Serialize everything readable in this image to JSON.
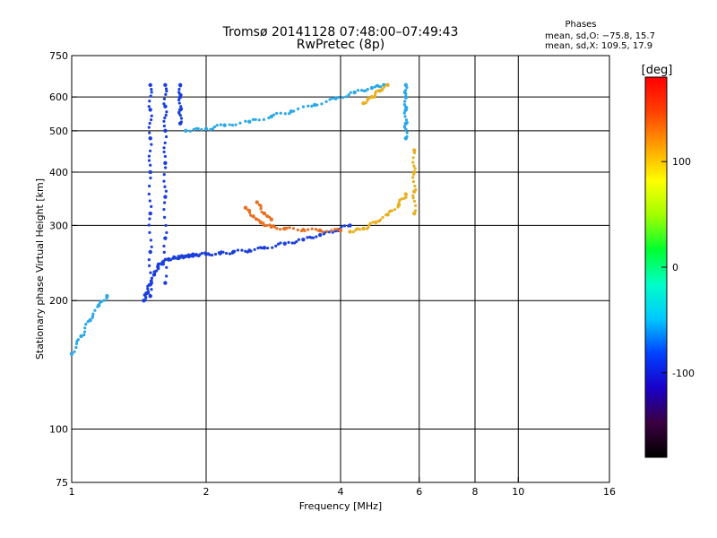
{
  "chart_data": {
    "type": "scatter",
    "title": "Tromsø 20141128 07:48:00–07:49:43",
    "subtitle": "RwPretec (8p)",
    "xlabel": "Frequency [MHz]",
    "ylabel": "Stationary phase Virtual Height [km]",
    "x_scale": "log",
    "y_scale": "log",
    "xlim": [
      1,
      16
    ],
    "ylim": [
      75,
      750
    ],
    "x_ticks": [
      1,
      2,
      4,
      6,
      8,
      10,
      16
    ],
    "y_ticks": [
      75,
      100,
      200,
      300,
      400,
      500,
      600,
      750
    ],
    "grid_x": [
      2,
      4,
      6,
      8,
      10
    ],
    "grid_y": [
      100,
      200,
      300,
      400,
      500,
      600
    ],
    "phase_stats": {
      "heading": "Phases",
      "o_line": "mean, sd,O: −75.8, 15.7",
      "x_line": "mean, sd,X: 109.5, 17.9"
    },
    "colorbar": {
      "unit": "[deg]",
      "range": [
        -180,
        180
      ],
      "ticks": [
        100,
        0,
        -100
      ],
      "colors": [
        "#000000",
        "#3a0040",
        "#1a00c8",
        "#0040ff",
        "#00c8ff",
        "#00ffc8",
        "#00ff30",
        "#a0ff00",
        "#ffff00",
        "#ffa000",
        "#ff4000",
        "#ff0000"
      ]
    },
    "series": [
      {
        "color": "#1a3fdc",
        "segments": [
          {
            "x": [
              1.45,
              1.47,
              1.5,
              1.53,
              1.56,
              1.6,
              1.65,
              1.7,
              1.75,
              1.8,
              1.85,
              1.9,
              2.0,
              2.15,
              2.3,
              2.5,
              2.7,
              3.0,
              3.3,
              3.6,
              3.9,
              4.2
            ],
            "y": [
              200,
              208,
              218,
              230,
              240,
              246,
              250,
              252,
              253,
              254,
              255,
              256,
              257,
              258,
              260,
              262,
              266,
              272,
              278,
              285,
              292,
              300
            ]
          },
          {
            "x": [
              1.5,
              1.5,
              1.5,
              1.5,
              1.5,
              1.5,
              1.5
            ],
            "y": [
              205,
              260,
              320,
              400,
              480,
              560,
              640
            ]
          },
          {
            "x": [
              1.62,
              1.62,
              1.62,
              1.62,
              1.62,
              1.62,
              1.62
            ],
            "y": [
              220,
              280,
              350,
              420,
              500,
              570,
              640
            ]
          },
          {
            "x": [
              1.75,
              1.75,
              1.75,
              1.75
            ],
            "y": [
              520,
              560,
              600,
              640
            ]
          }
        ]
      },
      {
        "color": "#2aa8e8",
        "segments": [
          {
            "x": [
              1.8,
              2.0,
              2.2,
              2.5,
              2.8,
              3.1,
              3.5,
              3.9,
              4.3,
              4.7,
              5.0
            ],
            "y": [
              500,
              505,
              515,
              525,
              540,
              555,
              575,
              595,
              615,
              630,
              640
            ]
          },
          {
            "x": [
              5.6,
              5.6,
              5.6,
              5.6,
              5.6
            ],
            "y": [
              480,
              520,
              560,
              600,
              640
            ]
          },
          {
            "x": [
              1.0,
              1.05,
              1.1,
              1.15,
              1.2
            ],
            "y": [
              150,
              165,
              180,
              195,
              205
            ]
          }
        ]
      },
      {
        "color": "#e8b020",
        "segments": [
          {
            "x": [
              5.85,
              5.85,
              5.85,
              5.85
            ],
            "y": [
              320,
              360,
              400,
              450
            ]
          },
          {
            "x": [
              4.2,
              4.5,
              4.8,
              5.1,
              5.4,
              5.6
            ],
            "y": [
              290,
              295,
              305,
              318,
              335,
              355
            ]
          },
          {
            "x": [
              4.5,
              4.7,
              4.9,
              5.1
            ],
            "y": [
              580,
              600,
              620,
              640
            ]
          }
        ]
      },
      {
        "color": "#e87020",
        "segments": [
          {
            "x": [
              2.45,
              2.55,
              2.65,
              2.8,
              3.0,
              3.3,
              3.6,
              4.0
            ],
            "y": [
              330,
              315,
              305,
              298,
              295,
              293,
              292,
              292
            ]
          },
          {
            "x": [
              2.6,
              2.7,
              2.8
            ],
            "y": [
              340,
              320,
              310
            ]
          }
        ]
      }
    ]
  }
}
